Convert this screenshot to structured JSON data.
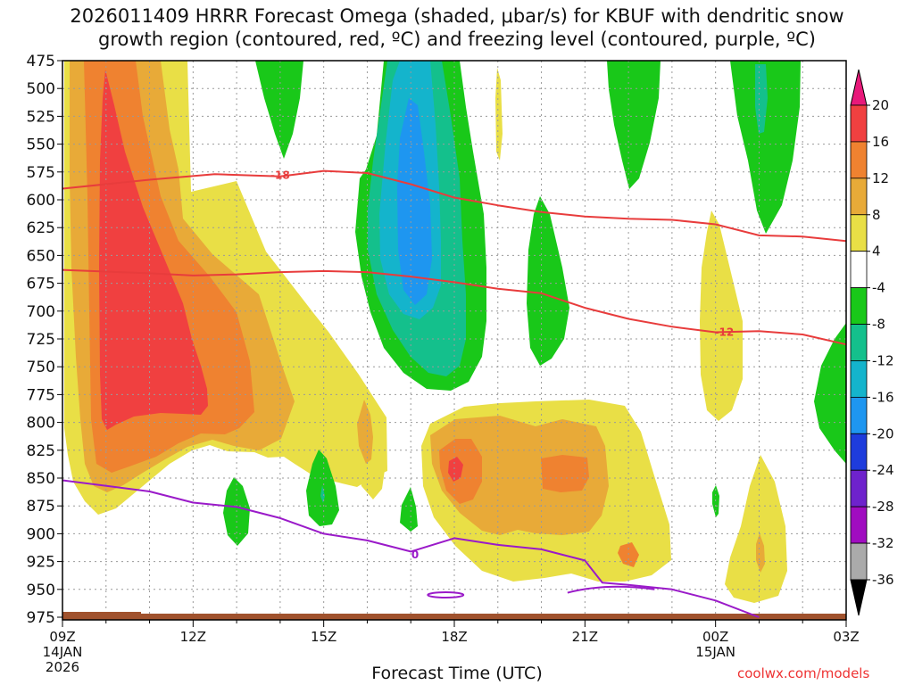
{
  "chart_data": {
    "type": "heatmap",
    "title_line1": "2026011409 HRRR Forecast Omega (shaded, μbar/s) for KBUF with dendritic snow",
    "title_line2": "growth region (contoured, red, ºC) and freezing level (contoured, purple, ºC)",
    "xlabel": "Forecast Time (UTC)",
    "watermark": "coolwx.com/models",
    "x_hours": [
      0,
      18
    ],
    "x_ticks": [
      {
        "hour": 0,
        "label": "09Z",
        "sub1": "14JAN",
        "sub2": "2026"
      },
      {
        "hour": 3,
        "label": "12Z"
      },
      {
        "hour": 6,
        "label": "15Z"
      },
      {
        "hour": 9,
        "label": "18Z"
      },
      {
        "hour": 12,
        "label": "21Z"
      },
      {
        "hour": 15,
        "label": "00Z",
        "sub1": "15JAN"
      },
      {
        "hour": 18,
        "label": "03Z"
      }
    ],
    "y_levels": [
      "475",
      "500",
      "525",
      "550",
      "575",
      "600",
      "625",
      "650",
      "675",
      "700",
      "725",
      "750",
      "775",
      "800",
      "825",
      "850",
      "875",
      "900",
      "925",
      "950",
      "975"
    ],
    "ylim_hPa": [
      975,
      475
    ],
    "colorbar": {
      "labels": [
        "20",
        "16",
        "12",
        "8",
        "4",
        "-4",
        "-8",
        "-12",
        "-16",
        "-20",
        "-24",
        "-28",
        "-32",
        "-36"
      ],
      "bins": [
        {
          "range": "> 20",
          "color": "#e8197a"
        },
        {
          "range": "16 to 20",
          "color": "#f04040"
        },
        {
          "range": "12 to 16",
          "color": "#ef8230"
        },
        {
          "range": "8 to 12",
          "color": "#e8aa38"
        },
        {
          "range": "4 to 8",
          "color": "#e9df46"
        },
        {
          "range": "-4 to 4",
          "color": "#ffffff"
        },
        {
          "range": "-8 to -4",
          "color": "#19c819"
        },
        {
          "range": "-12 to -8",
          "color": "#14c08c"
        },
        {
          "range": "-16 to -12",
          "color": "#14b4cc"
        },
        {
          "range": "-20 to -16",
          "color": "#1e96f0"
        },
        {
          "range": "-24 to -20",
          "color": "#1e3cdc"
        },
        {
          "range": "-28 to -24",
          "color": "#6e22cc"
        },
        {
          "range": "-32 to -28",
          "color": "#a00cc0"
        },
        {
          "range": "-36 to -32",
          "color": "#aaaaaa"
        },
        {
          "range": "< -36",
          "color": "#000000"
        }
      ]
    },
    "contours": [
      {
        "name": "dgz-minus18",
        "label": "-18",
        "color": "#e83c3c",
        "points": [
          [
            0,
            590
          ],
          [
            2,
            582
          ],
          [
            3.5,
            577
          ],
          [
            5,
            579
          ],
          [
            6,
            574
          ],
          [
            7,
            576
          ],
          [
            8,
            586
          ],
          [
            9,
            598
          ],
          [
            10,
            605
          ],
          [
            11,
            611
          ],
          [
            12,
            615
          ],
          [
            13,
            617
          ],
          [
            14,
            618
          ],
          [
            15,
            622
          ],
          [
            16,
            632
          ],
          [
            17,
            633
          ],
          [
            18,
            637
          ]
        ],
        "label_at": [
          5,
          578
        ]
      },
      {
        "name": "dgz-minus12",
        "label": "-12",
        "color": "#e83c3c",
        "points": [
          [
            0,
            663
          ],
          [
            2,
            666
          ],
          [
            3,
            668
          ],
          [
            4,
            667
          ],
          [
            5,
            665
          ],
          [
            6,
            664
          ],
          [
            7,
            665
          ],
          [
            8,
            669
          ],
          [
            9,
            674
          ],
          [
            10,
            680
          ],
          [
            11,
            684
          ],
          [
            12,
            697
          ],
          [
            13,
            707
          ],
          [
            14,
            714
          ],
          [
            15,
            719
          ],
          [
            16,
            718
          ],
          [
            17,
            721
          ],
          [
            18,
            730
          ]
        ],
        "label_at": [
          15.2,
          719
        ]
      },
      {
        "name": "freezing-level-0",
        "label": "0",
        "color": "#9a1ac9",
        "points": [
          [
            0,
            852
          ],
          [
            2,
            862
          ],
          [
            3,
            872
          ],
          [
            4,
            876
          ],
          [
            5,
            886
          ],
          [
            6,
            900
          ],
          [
            7,
            906
          ],
          [
            8,
            916
          ],
          [
            9,
            904
          ],
          [
            10,
            910
          ],
          [
            11,
            914
          ],
          [
            12,
            924
          ],
          [
            12.4,
            944
          ],
          [
            13,
            946
          ],
          [
            14,
            950
          ],
          [
            15,
            960
          ],
          [
            16,
            975
          ]
        ],
        "label_at": [
          8.1,
          919
        ]
      }
    ]
  }
}
